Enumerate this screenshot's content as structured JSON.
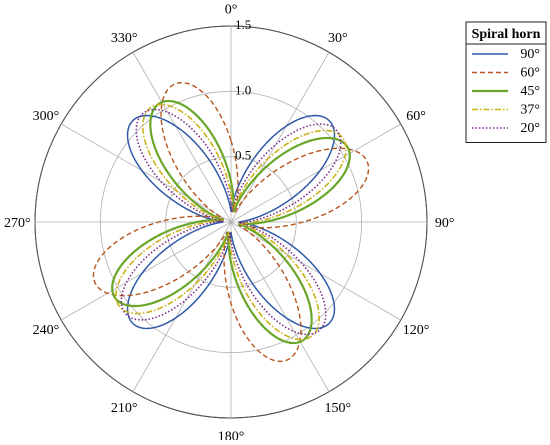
{
  "chart_data": {
    "type": "polar-line",
    "title": "",
    "angle_unit": "deg",
    "zero_direction": "top",
    "rotation": "clockwise",
    "rlim": [
      0,
      1.5
    ],
    "radial_ticks": [
      {
        "value": 0.5,
        "label": "0.5"
      },
      {
        "value": 1.0,
        "label": "1.0"
      },
      {
        "value": 1.5,
        "label": "1.5"
      }
    ],
    "angular_ticks": [
      {
        "value": 0,
        "label": "0°"
      },
      {
        "value": 30,
        "label": "30°"
      },
      {
        "value": 60,
        "label": "60°"
      },
      {
        "value": 90,
        "label": "90°"
      },
      {
        "value": 120,
        "label": "120°"
      },
      {
        "value": 150,
        "label": "150°"
      },
      {
        "value": 180,
        "label": "180°"
      },
      {
        "value": 210,
        "label": "210°"
      },
      {
        "value": 240,
        "label": "240°"
      },
      {
        "value": 270,
        "label": "270°"
      },
      {
        "value": 300,
        "label": "300°"
      },
      {
        "value": 330,
        "label": "330°"
      }
    ],
    "grid": true,
    "legend": {
      "title": "Spiral horn",
      "placement": "top-right"
    },
    "series": [
      {
        "name": "90°",
        "color": "#2e5aa8",
        "dash": "solid",
        "lobe_center_angles": [
          44,
          136,
          224,
          316
        ],
        "peak_r": 1.08,
        "half_width_deg": 22
      },
      {
        "name": "60°",
        "color": "#b8541c",
        "dash": "dashed",
        "lobe_center_angles": [
          66,
          158,
          246,
          338
        ],
        "peak_r": 1.14,
        "half_width_deg": 22
      },
      {
        "name": "45°",
        "color": "#6aa62a",
        "dash": "solid-thick",
        "lobe_center_angles": [
          57,
          149,
          237,
          329
        ],
        "peak_r": 1.06,
        "half_width_deg": 22
      },
      {
        "name": "37°",
        "color": "#c9b21a",
        "dash": "dashdot",
        "lobe_center_angles": [
          53,
          145,
          233,
          325
        ],
        "peak_r": 1.07,
        "half_width_deg": 22
      },
      {
        "name": "20°",
        "color": "#7a2e8c",
        "dash": "dotted",
        "lobe_center_angles": [
          49,
          141,
          229,
          321
        ],
        "peak_r": 1.07,
        "half_width_deg": 22
      }
    ]
  }
}
